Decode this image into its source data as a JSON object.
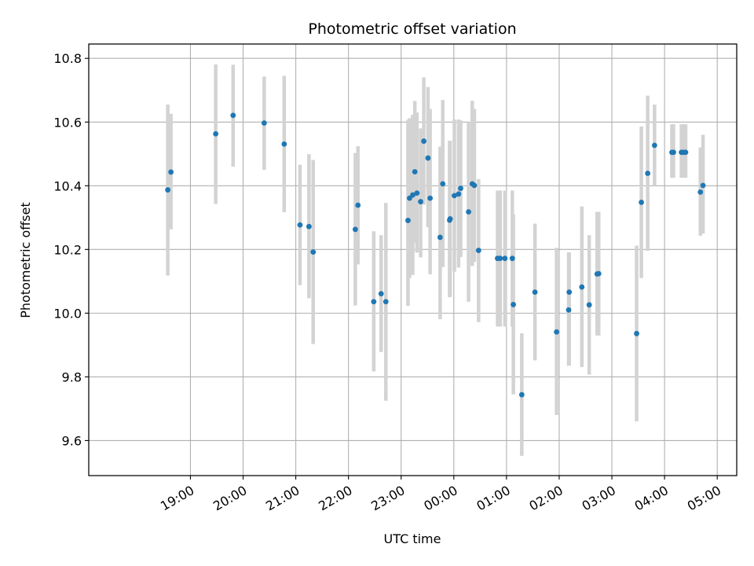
{
  "chart_data": {
    "type": "scatter",
    "title": "Photometric offset variation",
    "xlabel": "UTC time",
    "ylabel": "Photometric offset",
    "x_unit": "UTC time (hours, relative to 00:00 of the second day; negative = previous evening)",
    "xlim": [
      -6.93,
      5.37
    ],
    "ylim": [
      9.49,
      10.845
    ],
    "x_ticks": [
      {
        "value": -5,
        "label": "19:00"
      },
      {
        "value": -4,
        "label": "20:00"
      },
      {
        "value": -3,
        "label": "21:00"
      },
      {
        "value": -2,
        "label": "22:00"
      },
      {
        "value": -1,
        "label": "23:00"
      },
      {
        "value": 0,
        "label": "00:00"
      },
      {
        "value": 1,
        "label": "01:00"
      },
      {
        "value": 2,
        "label": "02:00"
      },
      {
        "value": 3,
        "label": "03:00"
      },
      {
        "value": 4,
        "label": "04:00"
      },
      {
        "value": 5,
        "label": "05:00"
      }
    ],
    "y_ticks": [
      {
        "value": 9.6,
        "label": "9.6"
      },
      {
        "value": 9.8,
        "label": "9.8"
      },
      {
        "value": 10.0,
        "label": "10.0"
      },
      {
        "value": 10.2,
        "label": "10.2"
      },
      {
        "value": 10.4,
        "label": "10.4"
      },
      {
        "value": 10.6,
        "label": "10.6"
      },
      {
        "value": 10.8,
        "label": "10.8"
      }
    ],
    "grid": true,
    "colors": {
      "point": "#1f77b4",
      "errorbar": "#d3d3d3",
      "grid": "#b0b0b0"
    },
    "series": [
      {
        "points": [
          {
            "x": -5.43,
            "y": 10.387,
            "lo": 10.118,
            "hi": 10.655
          },
          {
            "x": -5.37,
            "y": 10.443,
            "lo": 10.263,
            "hi": 10.626
          },
          {
            "x": -4.52,
            "y": 10.563,
            "lo": 10.343,
            "hi": 10.781
          },
          {
            "x": -4.19,
            "y": 10.621,
            "lo": 10.46,
            "hi": 10.78
          },
          {
            "x": -3.6,
            "y": 10.597,
            "lo": 10.45,
            "hi": 10.743
          },
          {
            "x": -3.22,
            "y": 10.531,
            "lo": 10.317,
            "hi": 10.745
          },
          {
            "x": -2.92,
            "y": 10.277,
            "lo": 10.088,
            "hi": 10.466
          },
          {
            "x": -2.75,
            "y": 10.272,
            "lo": 10.047,
            "hi": 10.499
          },
          {
            "x": -2.67,
            "y": 10.192,
            "lo": 9.903,
            "hi": 10.481
          },
          {
            "x": -1.87,
            "y": 10.263,
            "lo": 10.024,
            "hi": 10.503
          },
          {
            "x": -1.82,
            "y": 10.339,
            "lo": 10.153,
            "hi": 10.524
          },
          {
            "x": -1.52,
            "y": 10.036,
            "lo": 9.817,
            "hi": 10.257
          },
          {
            "x": -1.38,
            "y": 10.061,
            "lo": 9.878,
            "hi": 10.245
          },
          {
            "x": -1.29,
            "y": 10.036,
            "lo": 9.725,
            "hi": 10.346
          },
          {
            "x": -0.87,
            "y": 10.291,
            "lo": 10.023,
            "hi": 10.607
          },
          {
            "x": -0.84,
            "y": 10.361,
            "lo": 10.11,
            "hi": 10.612
          },
          {
            "x": -0.78,
            "y": 10.371,
            "lo": 10.12,
            "hi": 10.623
          },
          {
            "x": -0.74,
            "y": 10.444,
            "lo": 10.221,
            "hi": 10.666
          },
          {
            "x": -0.7,
            "y": 10.377,
            "lo": 10.19,
            "hi": 10.63
          },
          {
            "x": -0.63,
            "y": 10.35,
            "lo": 10.175,
            "hi": 10.58
          },
          {
            "x": -0.57,
            "y": 10.54,
            "lo": 10.341,
            "hi": 10.74
          },
          {
            "x": -0.49,
            "y": 10.487,
            "lo": 10.27,
            "hi": 10.71
          },
          {
            "x": -0.45,
            "y": 10.361,
            "lo": 10.122,
            "hi": 10.641
          },
          {
            "x": -0.26,
            "y": 10.238,
            "lo": 9.981,
            "hi": 10.523
          },
          {
            "x": -0.21,
            "y": 10.406,
            "lo": 10.145,
            "hi": 10.669
          },
          {
            "x": -0.08,
            "y": 10.292,
            "lo": 10.05,
            "hi": 10.541
          },
          {
            "x": -0.07,
            "y": 10.296,
            "lo": 10.052,
            "hi": 10.541
          },
          {
            "x": 0.01,
            "y": 10.369,
            "lo": 10.13,
            "hi": 10.608
          },
          {
            "x": 0.09,
            "y": 10.374,
            "lo": 10.143,
            "hi": 10.608
          },
          {
            "x": 0.13,
            "y": 10.392,
            "lo": 10.176,
            "hi": 10.605
          },
          {
            "x": 0.28,
            "y": 10.318,
            "lo": 10.036,
            "hi": 10.6
          },
          {
            "x": 0.35,
            "y": 10.406,
            "lo": 10.148,
            "hi": 10.667
          },
          {
            "x": 0.39,
            "y": 10.401,
            "lo": 10.161,
            "hi": 10.641
          },
          {
            "x": 0.47,
            "y": 10.197,
            "lo": 9.972,
            "hi": 10.421
          },
          {
            "x": 0.83,
            "y": 10.172,
            "lo": 9.958,
            "hi": 10.385
          },
          {
            "x": 0.88,
            "y": 10.172,
            "lo": 9.958,
            "hi": 10.385
          },
          {
            "x": 0.97,
            "y": 10.172,
            "lo": 9.958,
            "hi": 10.385
          },
          {
            "x": 1.11,
            "y": 10.172,
            "lo": 9.958,
            "hi": 10.385
          },
          {
            "x": 1.13,
            "y": 10.027,
            "lo": 9.745,
            "hi": 10.31
          },
          {
            "x": 1.29,
            "y": 9.744,
            "lo": 9.552,
            "hi": 9.937
          },
          {
            "x": 1.54,
            "y": 10.066,
            "lo": 9.852,
            "hi": 10.281
          },
          {
            "x": 1.95,
            "y": 9.941,
            "lo": 9.68,
            "hi": 10.205
          },
          {
            "x": 2.18,
            "y": 10.01,
            "lo": 9.835,
            "hi": 10.191
          },
          {
            "x": 2.19,
            "y": 10.066,
            "lo": 9.836,
            "hi": 10.19
          },
          {
            "x": 2.43,
            "y": 10.082,
            "lo": 9.831,
            "hi": 10.335
          },
          {
            "x": 2.57,
            "y": 10.026,
            "lo": 9.807,
            "hi": 10.245
          },
          {
            "x": 2.72,
            "y": 10.123,
            "lo": 9.93,
            "hi": 10.318
          },
          {
            "x": 2.75,
            "y": 10.124,
            "lo": 9.93,
            "hi": 10.318
          },
          {
            "x": 3.47,
            "y": 9.936,
            "lo": 9.66,
            "hi": 10.212
          },
          {
            "x": 3.56,
            "y": 10.348,
            "lo": 10.11,
            "hi": 10.586
          },
          {
            "x": 3.68,
            "y": 10.439,
            "lo": 10.196,
            "hi": 10.683
          },
          {
            "x": 3.81,
            "y": 10.527,
            "lo": 10.4,
            "hi": 10.655
          },
          {
            "x": 4.14,
            "y": 10.505,
            "lo": 10.425,
            "hi": 10.593
          },
          {
            "x": 4.17,
            "y": 10.505,
            "lo": 10.425,
            "hi": 10.593
          },
          {
            "x": 4.32,
            "y": 10.505,
            "lo": 10.425,
            "hi": 10.593
          },
          {
            "x": 4.36,
            "y": 10.505,
            "lo": 10.425,
            "hi": 10.593
          },
          {
            "x": 4.4,
            "y": 10.505,
            "lo": 10.425,
            "hi": 10.593
          },
          {
            "x": 4.68,
            "y": 10.38,
            "lo": 10.243,
            "hi": 10.52
          },
          {
            "x": 4.73,
            "y": 10.401,
            "lo": 10.25,
            "hi": 10.56
          }
        ]
      }
    ]
  }
}
